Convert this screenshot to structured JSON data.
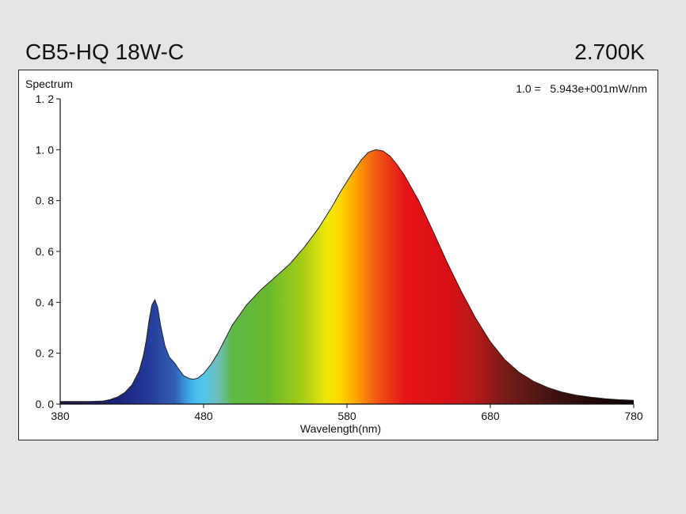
{
  "header": {
    "title": "CB5-HQ 18W-C",
    "cct": "2.700K"
  },
  "chart_data": {
    "type": "area",
    "title": "",
    "ylabel": "Spectrum",
    "xlabel": "Wavelength(nm)",
    "annotation": "1.0 =   5.943e+001mW/nm",
    "xlim": [
      380,
      780
    ],
    "ylim": [
      0,
      1.2
    ],
    "x_ticks": [
      380,
      480,
      580,
      680,
      780
    ],
    "x_tick_labels": [
      "380",
      "480",
      "580",
      "680",
      "780"
    ],
    "y_ticks": [
      0,
      0.2,
      0.4,
      0.6,
      0.8,
      1.0,
      1.2
    ],
    "y_tick_labels": [
      "0. 0",
      "0. 2",
      "0. 4",
      "0. 6",
      "0. 8",
      "1. 0",
      "1. 2"
    ],
    "grid": false,
    "fill": "spectral-wavelength-colors",
    "series": [
      {
        "x": [
          380,
          390,
          400,
          410,
          415,
          420,
          425,
          430,
          435,
          438,
          440,
          442,
          444,
          446,
          448,
          450,
          453,
          456,
          460,
          463,
          466,
          470,
          473,
          476,
          480,
          485,
          490,
          495,
          500,
          510,
          520,
          530,
          540,
          550,
          560,
          570,
          575,
          580,
          585,
          590,
          595,
          600,
          605,
          610,
          615,
          620,
          630,
          640,
          650,
          660,
          670,
          680,
          690,
          700,
          710,
          720,
          730,
          740,
          750,
          760,
          770,
          780
        ],
        "values": [
          0.01,
          0.01,
          0.01,
          0.012,
          0.018,
          0.028,
          0.045,
          0.075,
          0.13,
          0.19,
          0.25,
          0.33,
          0.39,
          0.41,
          0.38,
          0.31,
          0.23,
          0.185,
          0.16,
          0.135,
          0.112,
          0.1,
          0.098,
          0.102,
          0.12,
          0.155,
          0.2,
          0.255,
          0.31,
          0.39,
          0.45,
          0.5,
          0.55,
          0.615,
          0.69,
          0.78,
          0.83,
          0.875,
          0.92,
          0.96,
          0.99,
          1.0,
          0.995,
          0.975,
          0.94,
          0.9,
          0.8,
          0.68,
          0.555,
          0.44,
          0.335,
          0.245,
          0.175,
          0.125,
          0.09,
          0.065,
          0.047,
          0.035,
          0.027,
          0.021,
          0.017,
          0.015
        ]
      }
    ]
  }
}
